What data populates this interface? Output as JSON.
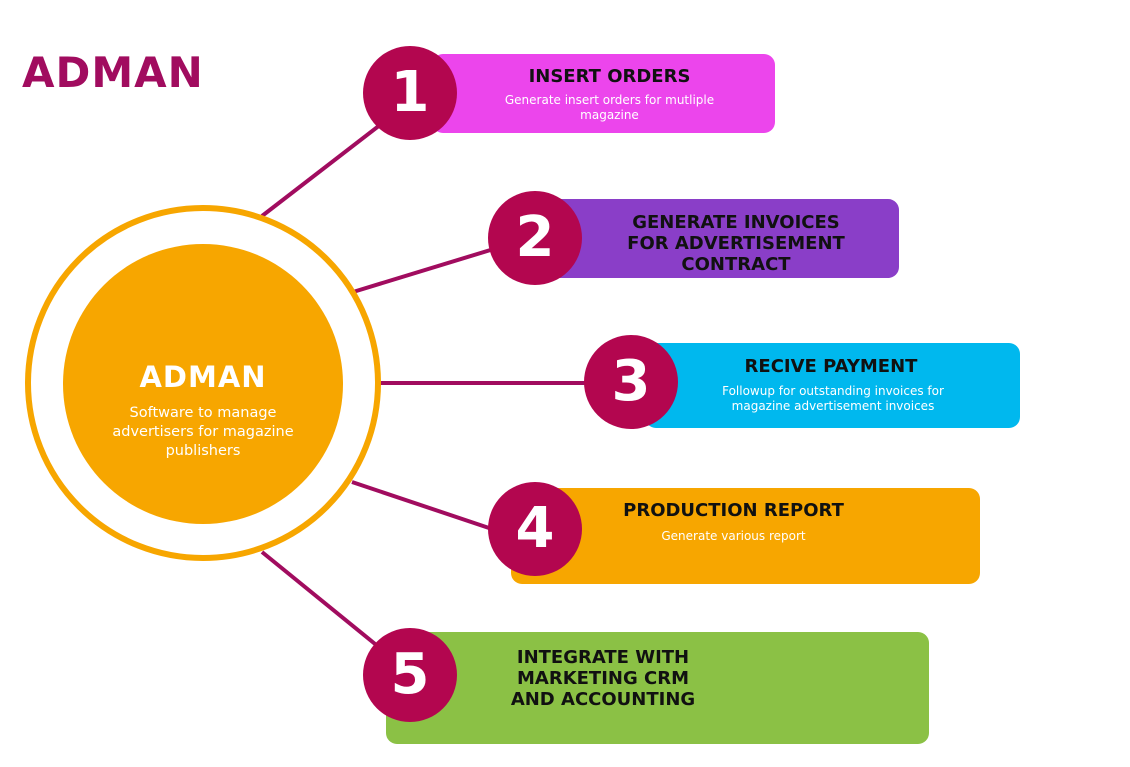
{
  "logo": {
    "text": "ADMAN"
  },
  "hub": {
    "title": "ADMAN",
    "description": "Software to manage advertisers for  magazine publishers"
  },
  "steps": [
    {
      "number": "1",
      "title": "INSERT ORDERS",
      "description": "Generate insert orders for mutliple magazine",
      "color": "#ec45ec"
    },
    {
      "number": "2",
      "title": "GENERATE INVOICES FOR ADVERTISEMENT CONTRACT",
      "description": "",
      "color": "#8a3ec8"
    },
    {
      "number": "3",
      "title": "RECIVE PAYMENT",
      "description": "Followup for outstanding invoices for magazine advertisement invoices",
      "color": "#00b8ee"
    },
    {
      "number": "4",
      "title": "PRODUCTION REPORT",
      "description": "Generate various report",
      "color": "#f7a600"
    },
    {
      "number": "5",
      "title": "INTEGRATE WITH MARKETING CRM AND ACCOUNTING",
      "description": "",
      "color": "#8bc145"
    }
  ],
  "colors": {
    "brand": "#a10c5f",
    "badge": "#b3064f",
    "hub": "#f7a600",
    "connector": "#a10c5f"
  }
}
